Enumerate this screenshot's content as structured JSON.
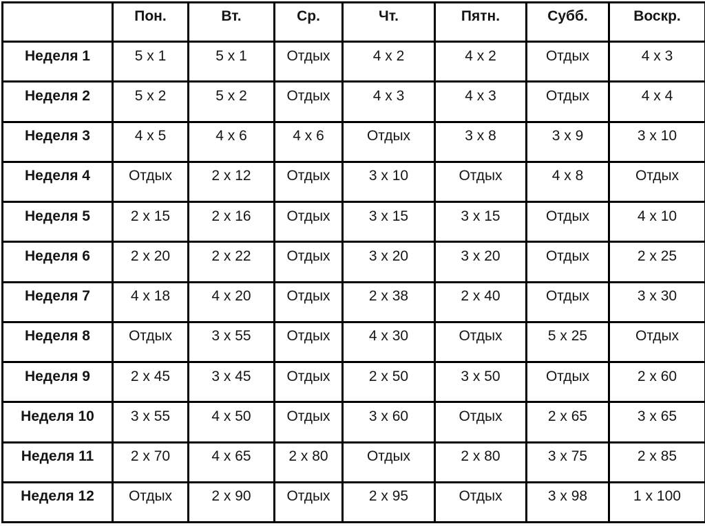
{
  "colors": {
    "border": "#000000",
    "text": "#151515",
    "background": "#ffffff"
  },
  "chart_data": {
    "type": "table",
    "title": "",
    "columns": [
      "",
      "Пон.",
      "Вт.",
      "Ср.",
      "Чт.",
      "Пятн.",
      "Субб.",
      "Воскр."
    ],
    "rows": [
      [
        "Неделя 1",
        "5 x 1",
        "5 x 1",
        "Отдых",
        "4 x 2",
        "4 x 2",
        "Отдых",
        "4 x 3"
      ],
      [
        "Неделя 2",
        "5 x 2",
        "5 x 2",
        "Отдых",
        "4 x 3",
        "4 x 3",
        "Отдых",
        "4 x 4"
      ],
      [
        "Неделя 3",
        "4 x 5",
        "4 x 6",
        "4 x 6",
        "Отдых",
        "3 x 8",
        "3 x 9",
        "3 x 10"
      ],
      [
        "Неделя 4",
        "Отдых",
        "2 x 12",
        "Отдых",
        "3 x 10",
        "Отдых",
        "4 x 8",
        "Отдых"
      ],
      [
        "Неделя 5",
        "2 x 15",
        "2 x 16",
        "Отдых",
        "3 x 15",
        "3 x 15",
        "Отдых",
        "4 x 10"
      ],
      [
        "Неделя 6",
        "2 x 20",
        "2 x 22",
        "Отдых",
        "3 x 20",
        "3 x 20",
        "Отдых",
        "2 x 25"
      ],
      [
        "Неделя 7",
        "4 x 18",
        "4 x 20",
        "Отдых",
        "2 x 38",
        "2 x 40",
        "Отдых",
        "3 x 30"
      ],
      [
        "Неделя 8",
        "Отдых",
        "3 x 55",
        "Отдых",
        "4 x 30",
        "Отдых",
        "5 x 25",
        "Отдых"
      ],
      [
        "Неделя 9",
        "2 x 45",
        "3 x 45",
        "Отдых",
        "2 x 50",
        "3 x 50",
        "Отдых",
        "2 x 60"
      ],
      [
        "Неделя 10",
        "3 x 55",
        "4 x 50",
        "Отдых",
        "3 x 60",
        "Отдых",
        "2 x 65",
        "3 x 65"
      ],
      [
        "Неделя 11",
        "2 x 70",
        "4 x 65",
        "2 x 80",
        "Отдых",
        "2 x 80",
        "3 x 75",
        "2 x 85"
      ],
      [
        "Неделя 12",
        "Отдых",
        "2 x 90",
        "Отдых",
        "2 x 95",
        "Отдых",
        "3 x 98",
        "1 x 100"
      ]
    ]
  }
}
